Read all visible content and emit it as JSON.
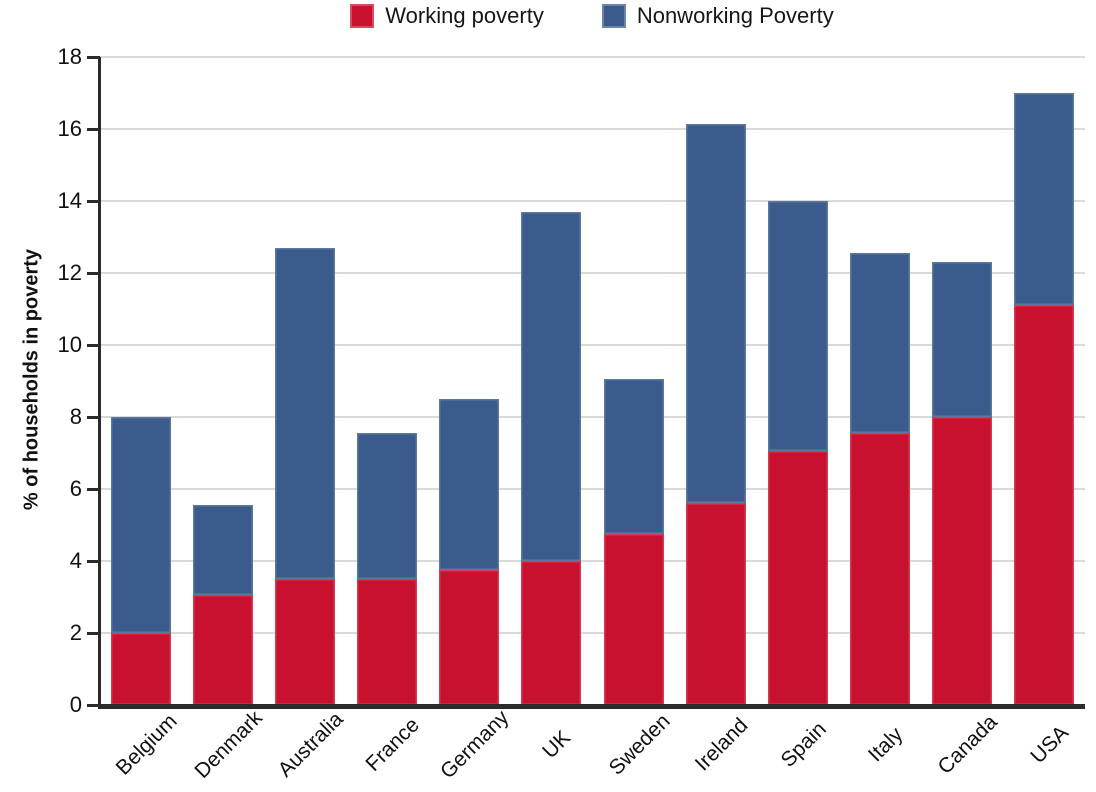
{
  "chart_data": {
    "type": "bar",
    "stacked": true,
    "title": "",
    "xlabel": "",
    "ylabel": "% of households in poverty",
    "ylim": [
      0,
      18
    ],
    "yticks": [
      0,
      2,
      4,
      6,
      8,
      10,
      12,
      14,
      16,
      18
    ],
    "grid": "horizontal",
    "legend_position": "top-center",
    "categories": [
      "Belgium",
      "Denmark",
      "Australia",
      "France",
      "Germany",
      "UK",
      "Sweden",
      "Ireland",
      "Spain",
      "Italy",
      "Canada",
      "USA"
    ],
    "series": [
      {
        "name": "Working poverty",
        "color": "#C8112E",
        "values": [
          2.0,
          3.05,
          3.5,
          3.5,
          3.75,
          4.0,
          4.75,
          5.6,
          7.05,
          7.55,
          8.0,
          11.1
        ]
      },
      {
        "name": "Nonworking Poverty",
        "color": "#3A5B8C",
        "values": [
          6.0,
          2.5,
          9.2,
          4.05,
          4.75,
          9.7,
          4.3,
          10.55,
          6.95,
          5.0,
          4.3,
          5.9
        ]
      }
    ],
    "totals": [
      8.0,
      5.55,
      12.7,
      7.55,
      8.5,
      13.7,
      9.05,
      16.15,
      14.0,
      12.55,
      12.3,
      17.0
    ]
  },
  "colors": {
    "working": "#C8112E",
    "nonworking": "#3A5B8C",
    "gridline": "#d9d9d9",
    "axis": "#2b2b2b",
    "text": "#111111"
  }
}
